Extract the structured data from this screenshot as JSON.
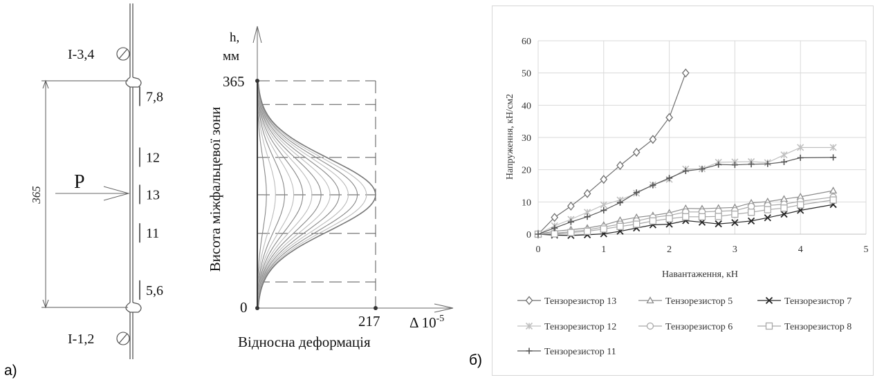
{
  "panel_labels": {
    "a": "а)",
    "b": "б)"
  },
  "schematic": {
    "height_dim": "365",
    "force_label": "P",
    "gauge_top": "I-3,4",
    "gauge_bottom": "I-1,2",
    "strain_gauges": [
      {
        "label": "7,8",
        "height_mm": 340
      },
      {
        "label": "12",
        "height_mm": 242
      },
      {
        "label": "13",
        "height_mm": 182
      },
      {
        "label": "11",
        "height_mm": 120
      },
      {
        "label": "5,6",
        "height_mm": 28
      }
    ]
  },
  "profile": {
    "y_axis_title_line1": "h,",
    "y_axis_title_line2": "мм",
    "y_tick_top": "365",
    "y_tick_bottom": "0",
    "x_tick": "217",
    "x_axis_symbol": "Δ 10",
    "x_axis_exp": "-5",
    "ylabel": "Висота міжфальцевої зони",
    "xlabel": "Відносна деформація",
    "h_max": 365,
    "peak_strain": 217,
    "levels_h": [
      327,
      242,
      182,
      120,
      42
    ]
  },
  "chart_data": {
    "type": "line",
    "x": [
      0,
      0.25,
      0.5,
      0.75,
      1.0,
      1.25,
      1.5,
      1.75,
      2.0,
      2.25,
      2.5,
      2.75,
      3.0,
      3.25,
      3.5,
      3.75,
      4.0,
      4.5
    ],
    "xlabel": "Навантаження, кН",
    "ylabel": "Напруження, кН/см2",
    "xlim": [
      0,
      5
    ],
    "ylim": [
      0,
      60
    ],
    "xticks": [
      0,
      1,
      2,
      3,
      4,
      5
    ],
    "yticks": [
      0,
      10,
      20,
      30,
      40,
      50,
      60
    ],
    "grid": true,
    "legend_position": "bottom",
    "series": [
      {
        "name": "Тензорезистор 13",
        "marker": "diamond",
        "color": "#6e6e6e",
        "values": [
          0,
          5.2,
          8.7,
          12.6,
          17,
          21.3,
          25.4,
          29.4,
          36.2,
          50,
          null,
          null,
          null,
          null,
          null,
          null,
          null,
          null
        ]
      },
      {
        "name": "Тензорезистор 5",
        "marker": "triangle",
        "color": "#8c8c8c",
        "values": [
          0,
          0.9,
          1.4,
          1.9,
          2.8,
          4.3,
          5.2,
          5.8,
          6.6,
          8,
          7.9,
          8.1,
          8.3,
          9.7,
          10.1,
          10.9,
          11.6,
          13.5
        ]
      },
      {
        "name": "Тензорезистор 7",
        "marker": "x",
        "color": "#262626",
        "values": [
          0,
          -0.3,
          -0.4,
          -0.2,
          0.1,
          0.9,
          1.9,
          2.9,
          3.1,
          4.2,
          3.7,
          3.2,
          3.6,
          4.1,
          5.1,
          6.2,
          7.4,
          9.2
        ]
      },
      {
        "name": "Тензорезистор 12",
        "marker": "star",
        "color": "#c0c0c0",
        "values": [
          0,
          2.6,
          4.6,
          6.8,
          9.1,
          10.6,
          12.7,
          15.3,
          17,
          20.2,
          20.3,
          22.3,
          22.4,
          22.5,
          22.2,
          24.6,
          26.9,
          26.9
        ]
      },
      {
        "name": "Тензорезистор 6",
        "marker": "circle",
        "color": "#a8a8a8",
        "values": [
          0,
          0.3,
          0.8,
          1.3,
          2.2,
          3.1,
          4.1,
          5.2,
          5.8,
          6.9,
          6.9,
          7.1,
          7.3,
          8.6,
          8.9,
          9.3,
          10.2,
          11.5
        ]
      },
      {
        "name": "Тензорезистор 8",
        "marker": "square",
        "color": "#a8a8a8",
        "values": [
          0,
          0.1,
          0.5,
          0.9,
          1.6,
          2.4,
          3.1,
          4.1,
          4.8,
          5.4,
          5.4,
          5.5,
          6.2,
          6.8,
          7.6,
          8.1,
          9.1,
          10.6
        ]
      },
      {
        "name": "Тензорезистор 11",
        "marker": "plus",
        "color": "#555555",
        "values": [
          0,
          1.9,
          3.8,
          5.4,
          7.4,
          9.8,
          12.9,
          15.2,
          17.4,
          19.6,
          20.2,
          21.6,
          21.5,
          21.7,
          21.8,
          22.4,
          23.7,
          23.8
        ]
      }
    ]
  }
}
